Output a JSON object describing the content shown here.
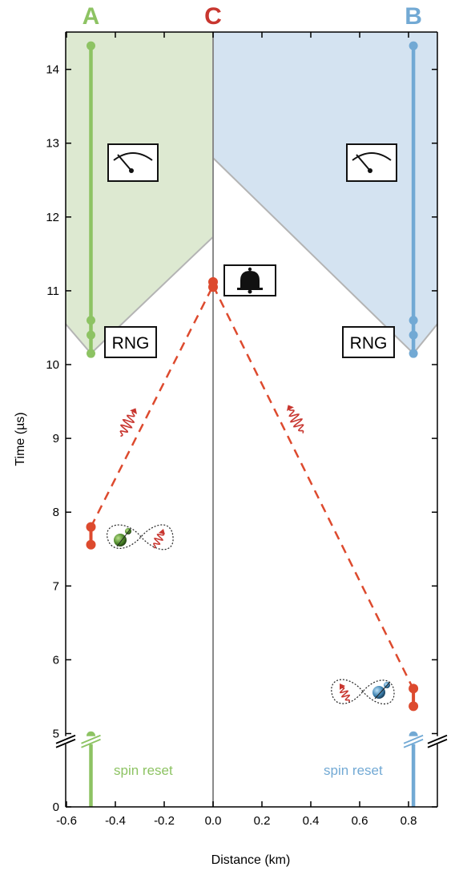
{
  "sites": {
    "a": {
      "label": "A",
      "color": "#8dc363"
    },
    "c": {
      "label": "C",
      "color": "#c8362f"
    },
    "b": {
      "label": "B",
      "color": "#72a9d4"
    }
  },
  "boxes": {
    "rng_left": "RNG",
    "rng_right": "RNG"
  },
  "notes": {
    "spin_reset_left": "spin reset",
    "spin_reset_right": "spin reset"
  },
  "colors": {
    "green_fill": "#dde9d1",
    "blue_fill": "#d4e3f1",
    "photon_red": "#dd4a2e",
    "cone_gray": "#b4b4b4"
  },
  "icons": [
    "meter-icon",
    "bell-icon",
    "photon-icon",
    "entangled-spin-icon"
  ],
  "chart_data": {
    "type": "scatter",
    "xlabel": "Distance (km)",
    "ylabel": "Time (µs)",
    "xlim": [
      -0.62,
      0.95
    ],
    "ylim": [
      0,
      14.8
    ],
    "x_ticks": [
      -0.6,
      -0.4,
      -0.2,
      0.0,
      0.2,
      0.4,
      0.6,
      0.8
    ],
    "x_tick_labels": [
      "-0.6",
      "-0.4",
      "-0.2",
      "0.0",
      "0.2",
      "0.4",
      "0.6",
      "0.8"
    ],
    "y_ticks": [
      0,
      5,
      6,
      7,
      8,
      9,
      10,
      11,
      12,
      13,
      14
    ],
    "y_tick_labels": [
      "0",
      "5",
      "6",
      "7",
      "8",
      "9",
      "10",
      "11",
      "12",
      "13",
      "14"
    ],
    "axis_break_y": 4.55,
    "grid": false,
    "series": [
      {
        "name": "A",
        "x": -0.5,
        "segments": [
          [
            0,
            4.85
          ],
          [
            10.15,
            14.32
          ]
        ],
        "points": [
          4.85,
          10.15,
          10.4,
          10.6,
          14.32
        ]
      },
      {
        "name": "B",
        "x": 0.82,
        "segments": [
          [
            0,
            4.85
          ],
          [
            10.15,
            14.32
          ]
        ],
        "points": [
          4.85,
          10.15,
          10.4,
          10.6,
          14.32
        ]
      },
      {
        "name": "C",
        "x": 0.0,
        "segments": [
          [
            0,
            14.8
          ]
        ],
        "points": []
      }
    ],
    "photon_paths": [
      {
        "from": [
          -0.5,
          7.8
        ],
        "to": [
          0.0,
          11.07
        ]
      },
      {
        "from": [
          0.82,
          5.6
        ],
        "to": [
          0.0,
          11.07
        ]
      }
    ],
    "emission_points": [
      {
        "x": -0.5,
        "y": [
          7.56,
          7.8
        ]
      },
      {
        "x": 0.82,
        "y": [
          5.37,
          5.61
        ]
      },
      {
        "x": 0.0,
        "y": [
          11.05,
          11.12
        ]
      }
    ],
    "light_cones": {
      "a_apex": [
        -0.5,
        10.15
      ],
      "b_apex": [
        0.82,
        10.15
      ],
      "c_intersect_left": 11.73,
      "c_intersect_right": 12.8
    }
  }
}
